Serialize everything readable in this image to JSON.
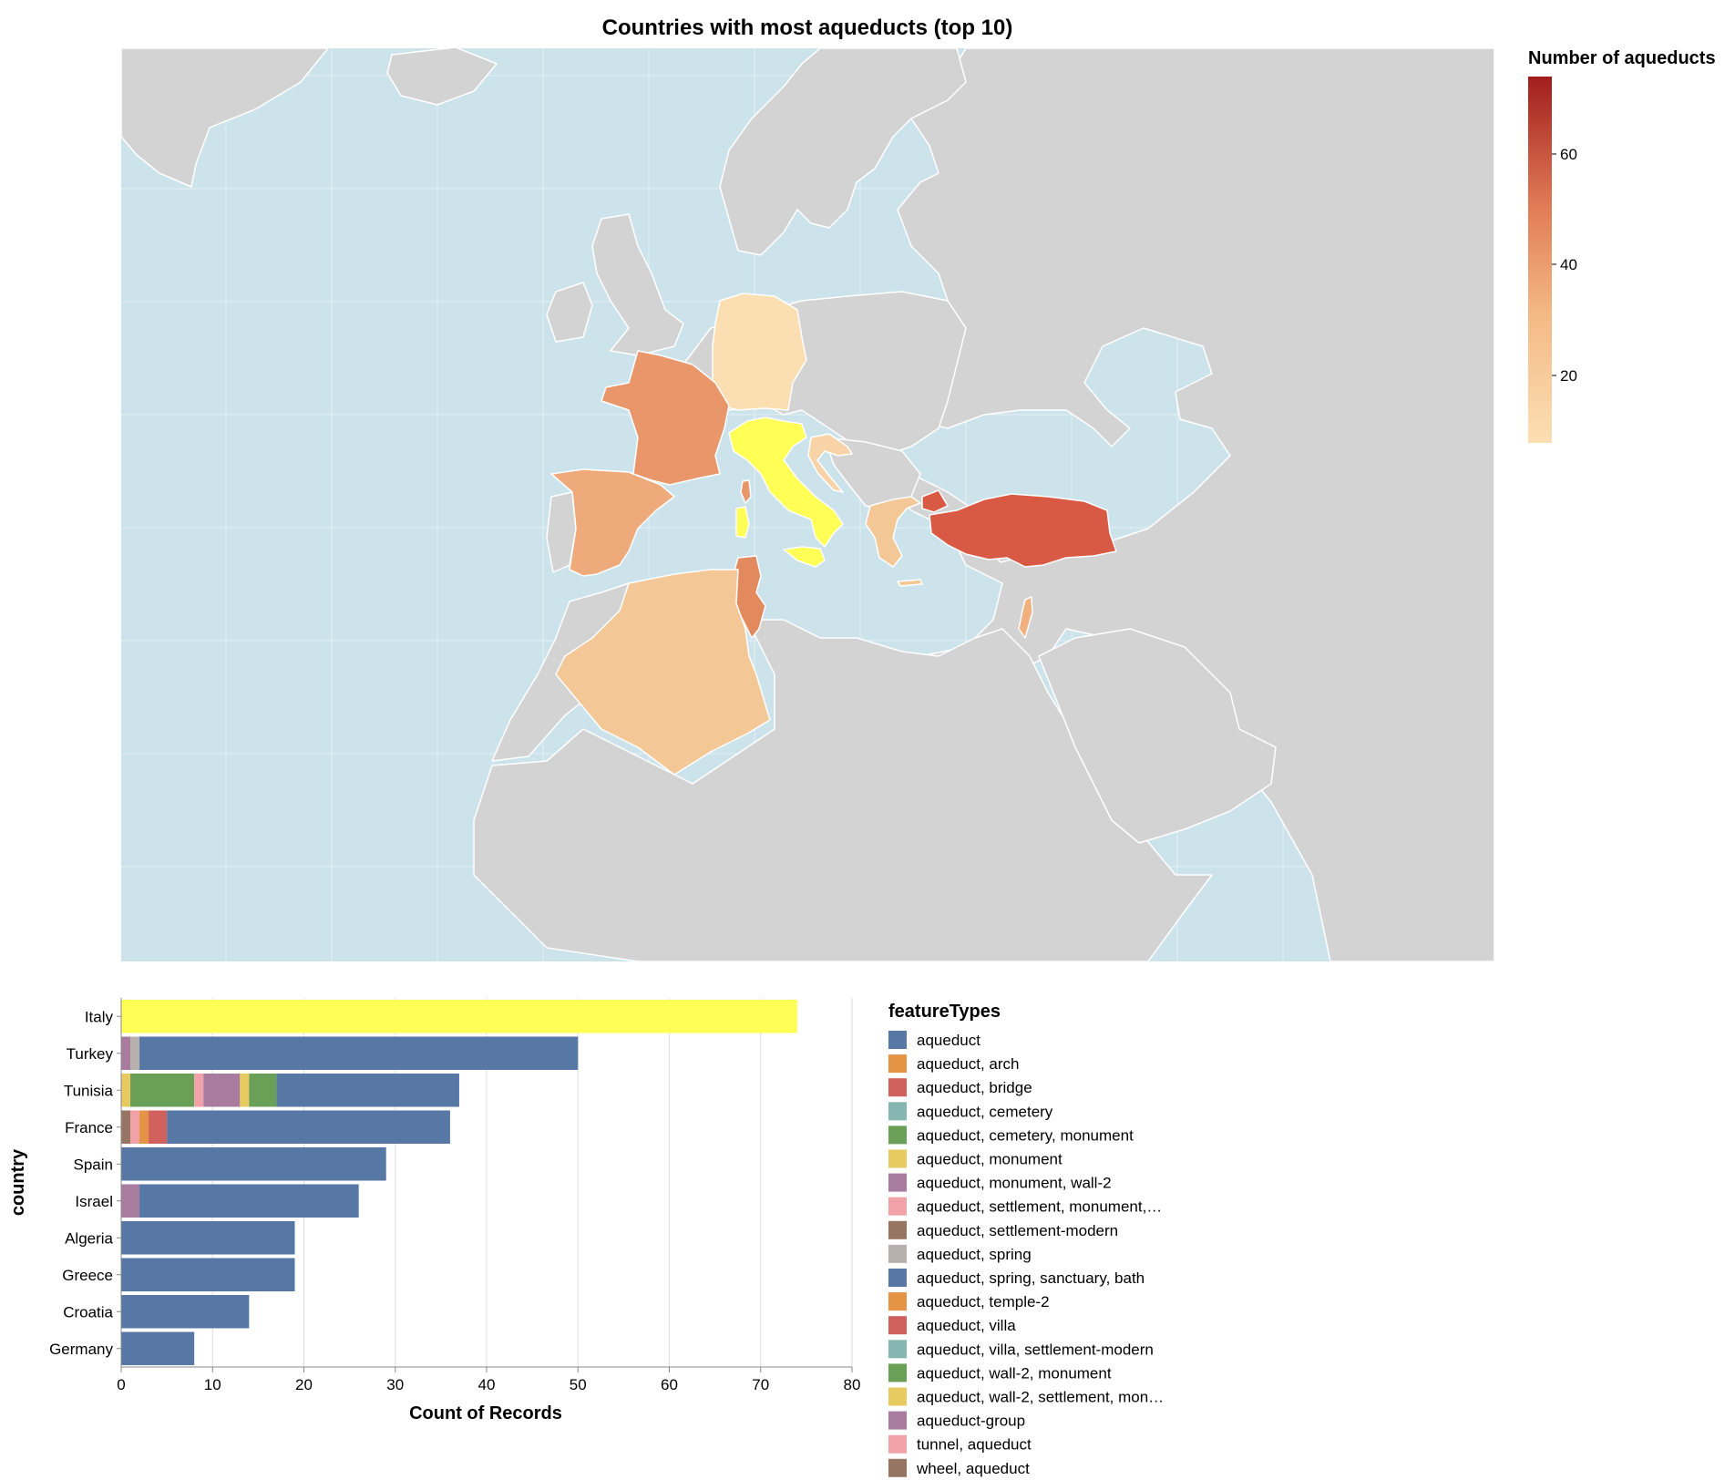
{
  "colors": {
    "ocean": "#cce3ec",
    "land": "#d3d3d3",
    "border": "#ffffff",
    "italy": "#ffff55",
    "gradient_low": "#fbdfb3",
    "gradient_high": "#a11d1d"
  },
  "map": {
    "title": "Countries with most aqueducts (top 10)",
    "legend_title": "Number of aqueducts",
    "legend_ticks": [
      "60",
      "40",
      "20"
    ]
  },
  "chart_data": [
    {
      "type": "choropleth",
      "title": "Countries with most aqueducts (top 10)",
      "color_legend": {
        "title": "Number of aqueducts",
        "domain": [
          8,
          73
        ],
        "ticks": [
          20,
          40,
          60
        ]
      },
      "regions": [
        {
          "name": "Italy",
          "value": 74,
          "color": "#ffff55"
        },
        {
          "name": "Turkey",
          "value": 50,
          "color": "#d85a45"
        },
        {
          "name": "Tunisia",
          "value": 37,
          "color": "#e28a5e"
        },
        {
          "name": "France",
          "value": 36,
          "color": "#e8966a"
        },
        {
          "name": "Spain",
          "value": 29,
          "color": "#efaa7c"
        },
        {
          "name": "Israel",
          "value": 26,
          "color": "#f1b07f"
        },
        {
          "name": "Algeria",
          "value": 19,
          "color": "#f4c797"
        },
        {
          "name": "Greece",
          "value": 19,
          "color": "#f4c797"
        },
        {
          "name": "Croatia",
          "value": 14,
          "color": "#f8d3a8"
        },
        {
          "name": "Germany",
          "value": 8,
          "color": "#fbdfb3"
        }
      ]
    },
    {
      "type": "bar",
      "orientation": "horizontal-stacked",
      "xlabel": "Count of Records",
      "ylabel": "country",
      "xlim": [
        0,
        80
      ],
      "xticks": [
        0,
        10,
        20,
        30,
        40,
        50,
        60,
        70,
        80
      ],
      "categories": [
        "Italy",
        "Turkey",
        "Tunisia",
        "France",
        "Spain",
        "Israel",
        "Algeria",
        "Greece",
        "Croatia",
        "Germany"
      ],
      "bars": [
        {
          "country": "Italy",
          "segments": [
            {
              "type": "Italy",
              "color": "#ffff55",
              "value": 74
            }
          ]
        },
        {
          "country": "Turkey",
          "segments": [
            {
              "type": "aqueduct-group",
              "value": 1
            },
            {
              "type": "aqueduct, spring",
              "value": 1
            },
            {
              "type": "aqueduct",
              "value": 48
            }
          ]
        },
        {
          "country": "Tunisia",
          "segments": [
            {
              "type": "aqueduct, monument",
              "value": 1
            },
            {
              "type": "aqueduct, cemetery, monument",
              "value": 7
            },
            {
              "type": "aqueduct, settlement, monument,…",
              "value": 1
            },
            {
              "type": "aqueduct, monument, wall-2",
              "value": 4
            },
            {
              "type": "aqueduct, wall-2, settlement, mon…",
              "value": 1
            },
            {
              "type": "aqueduct, wall-2, monument",
              "value": 3
            },
            {
              "type": "aqueduct",
              "value": 20
            }
          ]
        },
        {
          "country": "France",
          "segments": [
            {
              "type": "aqueduct, settlement-modern",
              "value": 1
            },
            {
              "type": "aqueduct, settlement, monument,…",
              "value": 1
            },
            {
              "type": "aqueduct, arch",
              "value": 1
            },
            {
              "type": "aqueduct, bridge",
              "value": 2
            },
            {
              "type": "aqueduct",
              "value": 31
            }
          ]
        },
        {
          "country": "Spain",
          "segments": [
            {
              "type": "aqueduct",
              "value": 29
            }
          ]
        },
        {
          "country": "Israel",
          "segments": [
            {
              "type": "aqueduct-group",
              "value": 2
            },
            {
              "type": "aqueduct",
              "value": 24
            }
          ]
        },
        {
          "country": "Algeria",
          "segments": [
            {
              "type": "aqueduct",
              "value": 19
            }
          ]
        },
        {
          "country": "Greece",
          "segments": [
            {
              "type": "aqueduct",
              "value": 19
            }
          ]
        },
        {
          "country": "Croatia",
          "segments": [
            {
              "type": "aqueduct",
              "value": 14
            }
          ]
        },
        {
          "country": "Germany",
          "segments": [
            {
              "type": "aqueduct",
              "value": 8
            }
          ]
        }
      ],
      "legend": {
        "title": "featureTypes",
        "entries": [
          {
            "label": "aqueduct",
            "color": "#5778a4"
          },
          {
            "label": "aqueduct, arch",
            "color": "#e49444"
          },
          {
            "label": "aqueduct, bridge",
            "color": "#d1615d"
          },
          {
            "label": "aqueduct, cemetery",
            "color": "#85b6b2"
          },
          {
            "label": "aqueduct, cemetery, monument",
            "color": "#6a9f58"
          },
          {
            "label": "aqueduct, monument",
            "color": "#e7ca60"
          },
          {
            "label": "aqueduct, monument, wall-2",
            "color": "#a87c9f"
          },
          {
            "label": "aqueduct, settlement, monument,…",
            "color": "#f1a2a9"
          },
          {
            "label": "aqueduct, settlement-modern",
            "color": "#967662"
          },
          {
            "label": "aqueduct, spring",
            "color": "#b8b0ac"
          },
          {
            "label": "aqueduct, spring, sanctuary, bath",
            "color": "#5778a4"
          },
          {
            "label": "aqueduct, temple-2",
            "color": "#e49444"
          },
          {
            "label": "aqueduct, villa",
            "color": "#d1615d"
          },
          {
            "label": "aqueduct, villa, settlement-modern",
            "color": "#85b6b2"
          },
          {
            "label": "aqueduct, wall-2, monument",
            "color": "#6a9f58"
          },
          {
            "label": "aqueduct, wall-2, settlement, mon…",
            "color": "#e7ca60"
          },
          {
            "label": "aqueduct-group",
            "color": "#a87c9f"
          },
          {
            "label": "tunnel, aqueduct",
            "color": "#f1a2a9"
          },
          {
            "label": "wheel, aqueduct",
            "color": "#967662"
          }
        ]
      }
    }
  ]
}
